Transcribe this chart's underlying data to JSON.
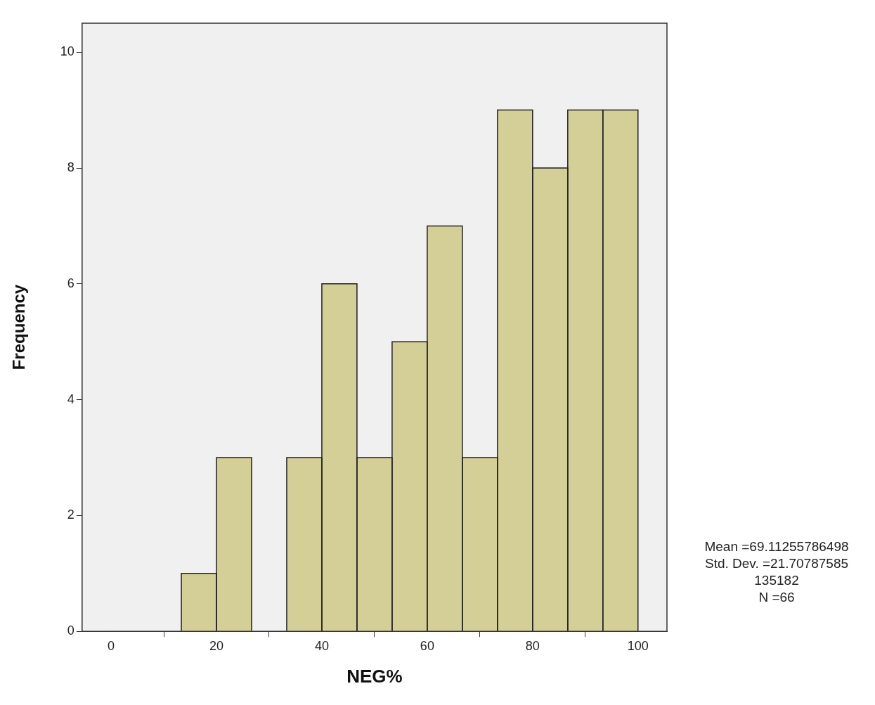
{
  "chart_data": {
    "type": "histogram",
    "xlabel": "NEG%",
    "ylabel": "Frequency",
    "bins": [
      0,
      6.667,
      13.333,
      20,
      26.667,
      33.333,
      40,
      46.667,
      53.333,
      60,
      66.667,
      73.333,
      80,
      86.667,
      93.333,
      100
    ],
    "values": [
      0,
      0,
      1,
      3,
      0,
      3,
      6,
      3,
      5,
      7,
      3,
      9,
      8,
      9,
      9
    ],
    "color": "#d4cf97",
    "xlim": [
      -5.5,
      105.5
    ],
    "xticks": [
      0,
      20,
      40,
      60,
      80,
      100
    ],
    "ylim": [
      0,
      10.5
    ],
    "yticks": [
      0,
      2,
      4,
      6,
      8,
      10
    ],
    "grid": false,
    "legend": false,
    "annotations": [
      "Mean =69.11255786498",
      "Std. Dev. =21.70787585135182",
      "N =66"
    ]
  }
}
